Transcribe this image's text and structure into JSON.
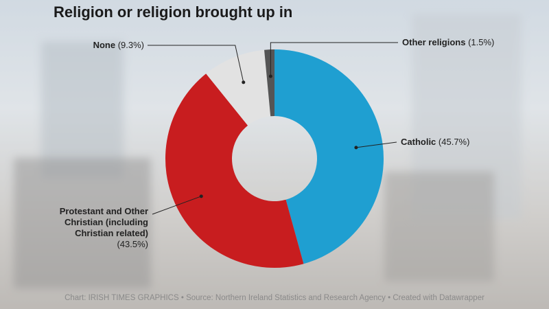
{
  "chart_data": {
    "type": "donut",
    "title": "Religion or religion brought up in",
    "categories": [
      "Catholic",
      "Protestant and Other Christian (including Christian related)",
      "None",
      "Other religions"
    ],
    "values": [
      45.7,
      43.5,
      9.3,
      1.5
    ],
    "value_labels": [
      "(45.7%)",
      "(43.5%)",
      "(9.3%)",
      "(1.5%)"
    ],
    "colors": [
      "#1f9fd1",
      "#c81d1f",
      "#e2e2e2",
      "#555555"
    ],
    "footer": "Chart: IRISH TIMES GRAPHICS • Source: Northern Ireland Statistics and Research Agency • Created with Datawrapper"
  }
}
